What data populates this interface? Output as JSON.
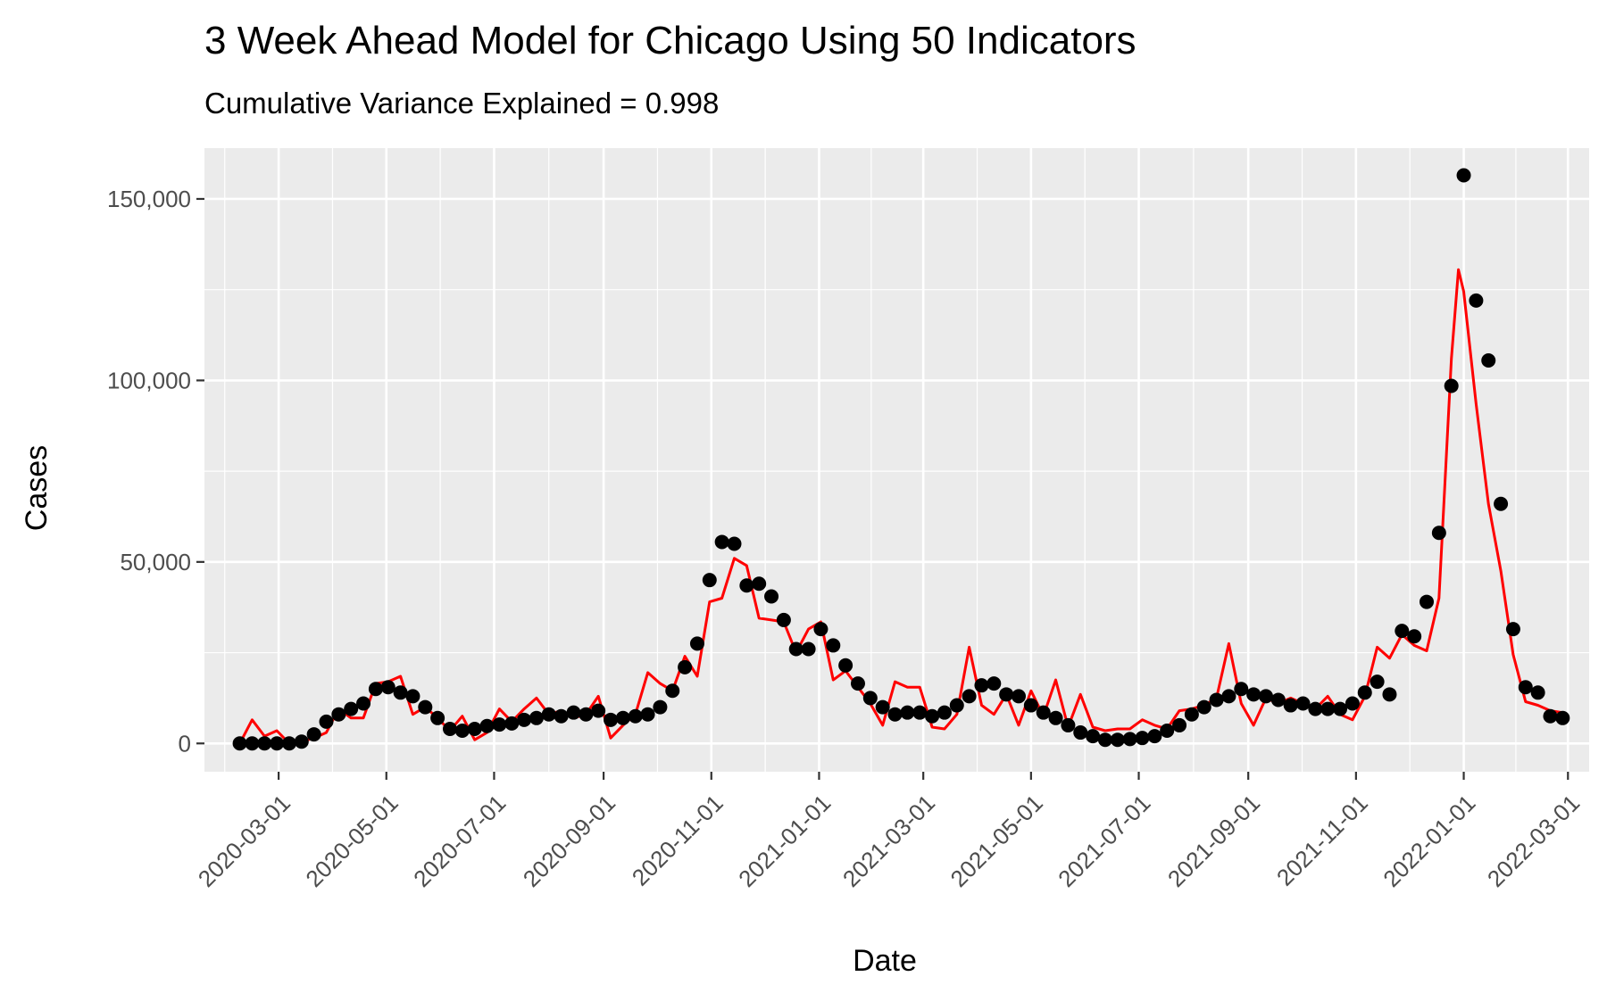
{
  "chart_data": {
    "type": "line",
    "title": "3 Week Ahead Model for Chicago Using 50 Indicators",
    "subtitle": "Cumulative Variance Explained = 0.998",
    "xlabel": "Date",
    "ylabel": "Cases",
    "xlim": [
      "2020-01-19",
      "2022-03-13"
    ],
    "ylim": [
      -7800,
      164000
    ],
    "x_ticks": [
      "2020-03-01",
      "2020-05-01",
      "2020-07-01",
      "2020-09-01",
      "2020-11-01",
      "2021-01-01",
      "2021-03-01",
      "2021-05-01",
      "2021-07-01",
      "2021-09-01",
      "2021-11-01",
      "2022-01-01",
      "2022-03-01"
    ],
    "y_ticks": [
      0,
      50000,
      100000,
      150000
    ],
    "y_tick_labels": [
      "0",
      "50,000",
      "100,000",
      "150,000"
    ],
    "grid": true,
    "series": [
      {
        "style": "points",
        "color": "#000000",
        "x": [
          "2020-02-08",
          "2020-02-15",
          "2020-02-22",
          "2020-02-29",
          "2020-03-07",
          "2020-03-14",
          "2020-03-21",
          "2020-03-28",
          "2020-04-04",
          "2020-04-11",
          "2020-04-18",
          "2020-04-25",
          "2020-05-02",
          "2020-05-09",
          "2020-05-16",
          "2020-05-23",
          "2020-05-30",
          "2020-06-06",
          "2020-06-13",
          "2020-06-20",
          "2020-06-27",
          "2020-07-04",
          "2020-07-11",
          "2020-07-18",
          "2020-07-25",
          "2020-08-01",
          "2020-08-08",
          "2020-08-15",
          "2020-08-22",
          "2020-08-29",
          "2020-09-05",
          "2020-09-12",
          "2020-09-19",
          "2020-09-26",
          "2020-10-03",
          "2020-10-10",
          "2020-10-17",
          "2020-10-24",
          "2020-10-31",
          "2020-11-07",
          "2020-11-14",
          "2020-11-21",
          "2020-11-28",
          "2020-12-05",
          "2020-12-12",
          "2020-12-19",
          "2020-12-26",
          "2021-01-02",
          "2021-01-09",
          "2021-01-16",
          "2021-01-23",
          "2021-01-30",
          "2021-02-06",
          "2021-02-13",
          "2021-02-20",
          "2021-02-27",
          "2021-03-06",
          "2021-03-13",
          "2021-03-20",
          "2021-03-27",
          "2021-04-03",
          "2021-04-10",
          "2021-04-17",
          "2021-04-24",
          "2021-05-01",
          "2021-05-08",
          "2021-05-15",
          "2021-05-22",
          "2021-05-29",
          "2021-06-05",
          "2021-06-12",
          "2021-06-19",
          "2021-06-26",
          "2021-07-03",
          "2021-07-10",
          "2021-07-17",
          "2021-07-24",
          "2021-07-31",
          "2021-08-07",
          "2021-08-14",
          "2021-08-21",
          "2021-08-28",
          "2021-09-04",
          "2021-09-11",
          "2021-09-18",
          "2021-09-25",
          "2021-10-02",
          "2021-10-09",
          "2021-10-16",
          "2021-10-23",
          "2021-10-30",
          "2021-11-06",
          "2021-11-13",
          "2021-11-20",
          "2021-11-27",
          "2021-12-04",
          "2021-12-11",
          "2021-12-18",
          "2021-12-25",
          "2022-01-01",
          "2022-01-08",
          "2022-01-15",
          "2022-01-22",
          "2022-01-29",
          "2022-02-05",
          "2022-02-12",
          "2022-02-19",
          "2022-02-26"
        ],
        "values": [
          0,
          0,
          0,
          0,
          0,
          500,
          2500,
          6000,
          8000,
          9500,
          11000,
          15000,
          15500,
          14000,
          13000,
          10000,
          7000,
          4000,
          3500,
          4000,
          4800,
          5200,
          5500,
          6500,
          7000,
          8000,
          7500,
          8500,
          8000,
          9000,
          6500,
          7000,
          7500,
          8000,
          10000,
          14500,
          21000,
          27500,
          45000,
          55500,
          55000,
          43500,
          44000,
          40500,
          34000,
          26000,
          26000,
          31500,
          27000,
          21500,
          16500,
          12500,
          10000,
          8000,
          8500,
          8500,
          7500,
          8500,
          10500,
          13000,
          16000,
          16500,
          13500,
          13000,
          10500,
          8500,
          7000,
          5000,
          3000,
          2000,
          1000,
          1000,
          1200,
          1500,
          2000,
          3500,
          5000,
          8000,
          10000,
          12000,
          13000,
          15000,
          13500,
          13000,
          12000,
          10500,
          11000,
          9500,
          9500,
          9500,
          11000,
          14000,
          17000,
          13500,
          31000,
          29500,
          39000,
          58000,
          98500,
          156500,
          122000,
          105500,
          66000,
          31500,
          15500,
          14000,
          7500,
          7000
        ]
      },
      {
        "style": "line",
        "color": "#ff0000",
        "x": [
          "2020-02-08",
          "2020-02-15",
          "2020-02-22",
          "2020-02-29",
          "2020-03-07",
          "2020-03-14",
          "2020-03-21",
          "2020-03-28",
          "2020-04-04",
          "2020-04-11",
          "2020-04-18",
          "2020-04-25",
          "2020-05-02",
          "2020-05-09",
          "2020-05-16",
          "2020-05-23",
          "2020-05-30",
          "2020-06-06",
          "2020-06-13",
          "2020-06-20",
          "2020-06-27",
          "2020-07-04",
          "2020-07-11",
          "2020-07-18",
          "2020-07-25",
          "2020-08-01",
          "2020-08-08",
          "2020-08-15",
          "2020-08-22",
          "2020-08-29",
          "2020-09-05",
          "2020-09-12",
          "2020-09-19",
          "2020-09-26",
          "2020-10-03",
          "2020-10-10",
          "2020-10-17",
          "2020-10-24",
          "2020-10-31",
          "2020-11-07",
          "2020-11-14",
          "2020-11-21",
          "2020-11-28",
          "2020-12-05",
          "2020-12-12",
          "2020-12-19",
          "2020-12-26",
          "2021-01-02",
          "2021-01-09",
          "2021-01-16",
          "2021-01-23",
          "2021-01-30",
          "2021-02-06",
          "2021-02-13",
          "2021-02-20",
          "2021-02-27",
          "2021-03-06",
          "2021-03-13",
          "2021-03-20",
          "2021-03-27",
          "2021-04-03",
          "2021-04-10",
          "2021-04-17",
          "2021-04-24",
          "2021-05-01",
          "2021-05-08",
          "2021-05-15",
          "2021-05-22",
          "2021-05-29",
          "2021-06-05",
          "2021-06-12",
          "2021-06-19",
          "2021-06-26",
          "2021-07-03",
          "2021-07-10",
          "2021-07-17",
          "2021-07-24",
          "2021-07-31",
          "2021-08-07",
          "2021-08-14",
          "2021-08-21",
          "2021-08-28",
          "2021-09-04",
          "2021-09-11",
          "2021-09-18",
          "2021-09-25",
          "2021-10-02",
          "2021-10-09",
          "2021-10-16",
          "2021-10-23",
          "2021-10-30",
          "2021-11-06",
          "2021-11-13",
          "2021-11-20",
          "2021-11-27",
          "2021-12-04",
          "2021-12-11",
          "2021-12-18",
          "2021-12-25",
          "2021-12-29",
          "2022-01-01",
          "2022-01-08",
          "2022-01-15",
          "2022-01-22",
          "2022-01-29",
          "2022-02-05",
          "2022-02-12",
          "2022-02-19",
          "2022-02-26"
        ],
        "values": [
          0,
          6500,
          2000,
          3500,
          0,
          500,
          1500,
          3000,
          9500,
          7000,
          7000,
          16500,
          17000,
          18500,
          8000,
          10000,
          7000,
          3500,
          7500,
          1000,
          3000,
          9500,
          6000,
          9500,
          12500,
          8000,
          9000,
          7000,
          8000,
          13000,
          1500,
          5000,
          8000,
          19500,
          16500,
          14500,
          24000,
          18500,
          39000,
          40000,
          51000,
          49000,
          34500,
          34000,
          33500,
          25000,
          31500,
          33500,
          17500,
          20000,
          15500,
          11000,
          5000,
          17000,
          15500,
          15500,
          4500,
          4000,
          8000,
          26500,
          10500,
          8000,
          13500,
          5000,
          14500,
          7500,
          17500,
          4500,
          13500,
          4500,
          3500,
          4000,
          4000,
          6500,
          5000,
          4000,
          9000,
          9500,
          10500,
          12500,
          27500,
          11000,
          5000,
          12500,
          11000,
          12500,
          11000,
          9500,
          13000,
          8000,
          6500,
          13000,
          26500,
          23500,
          30000,
          27000,
          25500,
          40000,
          106000,
          130500,
          124500,
          93500,
          66000,
          47500,
          24500,
          11500,
          10500,
          9000,
          8500
        ]
      }
    ]
  }
}
